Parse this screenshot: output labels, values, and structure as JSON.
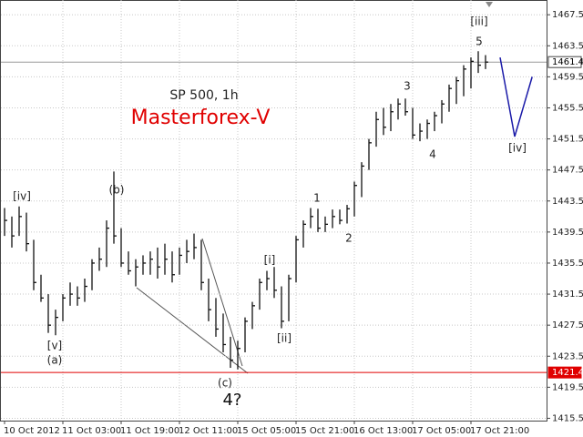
{
  "chart_data": {
    "type": "ohlc",
    "ylim": [
      1415.2,
      1469.4
    ],
    "yticks": [
      1467.5,
      1463.5,
      1459.5,
      1455.5,
      1451.5,
      1447.5,
      1443.5,
      1439.5,
      1435.5,
      1431.5,
      1427.5,
      1423.5,
      1419.5,
      1415.5
    ],
    "grid": true,
    "color": "#111111",
    "categories": [
      "10 Oct 2012",
      null,
      null,
      null,
      null,
      null,
      null,
      null,
      "11 Oct 03:00",
      null,
      null,
      null,
      null,
      null,
      null,
      null,
      "11 Oct 19:00",
      null,
      null,
      null,
      null,
      null,
      null,
      null,
      "12 Oct 11:00",
      null,
      null,
      null,
      null,
      null,
      null,
      null,
      "15 Oct 05:00",
      null,
      null,
      null,
      null,
      null,
      null,
      null,
      "15 Oct 21:00",
      null,
      null,
      null,
      null,
      null,
      null,
      null,
      "16 Oct 13:00",
      null,
      null,
      null,
      null,
      null,
      null,
      null,
      "17 Oct 05:00",
      null,
      null,
      null,
      null,
      null,
      null,
      null,
      "17 Oct 21:00",
      null,
      null
    ],
    "high": [
      1442.6,
      1441.5,
      1442.8,
      1442,
      1438.5,
      1434,
      1431.5,
      1429.5,
      1431.5,
      1433,
      1432.5,
      1433.5,
      1436,
      1437.5,
      1441,
      1447.3,
      1440,
      1437,
      1436,
      1436.5,
      1437,
      1437.5,
      1438,
      1437,
      1437.5,
      1438.5,
      1439.3,
      1438.5,
      1433.5,
      1431,
      1429,
      1426,
      1425.5,
      1428.5,
      1430.5,
      1433.5,
      1434.5,
      1435,
      1432.5,
      1434,
      1439,
      1441,
      1442.6,
      1442.5,
      1441.5,
      1442.4,
      1442.4,
      1443,
      1446,
      1448.5,
      1451.5,
      1455,
      1455.5,
      1456,
      1456.7,
      1456.7,
      1455.5,
      1453.5,
      1454,
      1455,
      1456.5,
      1458.5,
      1459.5,
      1461,
      1462,
      1462.8,
      1462.3
    ],
    "low": [
      1439,
      1437.5,
      1439,
      1437,
      1432,
      1430.5,
      1426.5,
      1426.2,
      1428,
      1430,
      1430,
      1430.5,
      1432,
      1434.5,
      1435,
      1438,
      1435,
      1434,
      1432.5,
      1434,
      1434,
      1433.5,
      1434,
      1433,
      1434,
      1435.5,
      1436,
      1432,
      1428,
      1426,
      1424,
      1422,
      1421.8,
      1424,
      1427,
      1429.5,
      1432,
      1431,
      1427.1,
      1428,
      1433,
      1437.5,
      1440,
      1439.5,
      1439.5,
      1440,
      1440.5,
      1440.6,
      1441.5,
      1444,
      1447.5,
      1450.5,
      1452,
      1452.5,
      1454,
      1454.5,
      1451.5,
      1451.2,
      1451.5,
      1452.5,
      1453.5,
      1455,
      1456,
      1457,
      1458,
      1460,
      1460.5
    ],
    "close": [
      1441,
      1439,
      1441.5,
      1438,
      1433,
      1431,
      1427.5,
      1428.5,
      1431,
      1431.5,
      1431,
      1432.5,
      1435.5,
      1436,
      1440,
      1439,
      1435.5,
      1434.5,
      1435,
      1435.5,
      1436,
      1435,
      1436,
      1434,
      1436.5,
      1437,
      1437.5,
      1433,
      1429.5,
      1427,
      1425,
      1423,
      1424.5,
      1428,
      1430,
      1433,
      1433.5,
      1432,
      1428,
      1433.5,
      1438.5,
      1440.5,
      1441.5,
      1440,
      1440.5,
      1441.5,
      1441,
      1442.5,
      1445.5,
      1448,
      1451,
      1454,
      1453,
      1455,
      1456,
      1455,
      1452,
      1452.5,
      1453.5,
      1454.5,
      1456,
      1458,
      1459,
      1460.5,
      1461.5,
      1461,
      1461.4
    ],
    "projection": {
      "color": "#1a1aa8",
      "x": [
        68,
        70,
        72.4
      ],
      "values": [
        1462,
        1451.8,
        1459.5
      ]
    },
    "price_lines": [
      {
        "value": 1461.4,
        "color": "#999999"
      },
      {
        "value": 1421.4,
        "color": "#e00000"
      }
    ],
    "annotations": [
      "SP 500, 1h",
      "Masterforex-V",
      "[iv]",
      "(b)",
      "[v]",
      "(a)",
      "(c)",
      "4?",
      "[i]",
      "[ii]",
      "1",
      "2",
      "3",
      "4",
      "[iii]",
      "5",
      "[iv]"
    ]
  }
}
